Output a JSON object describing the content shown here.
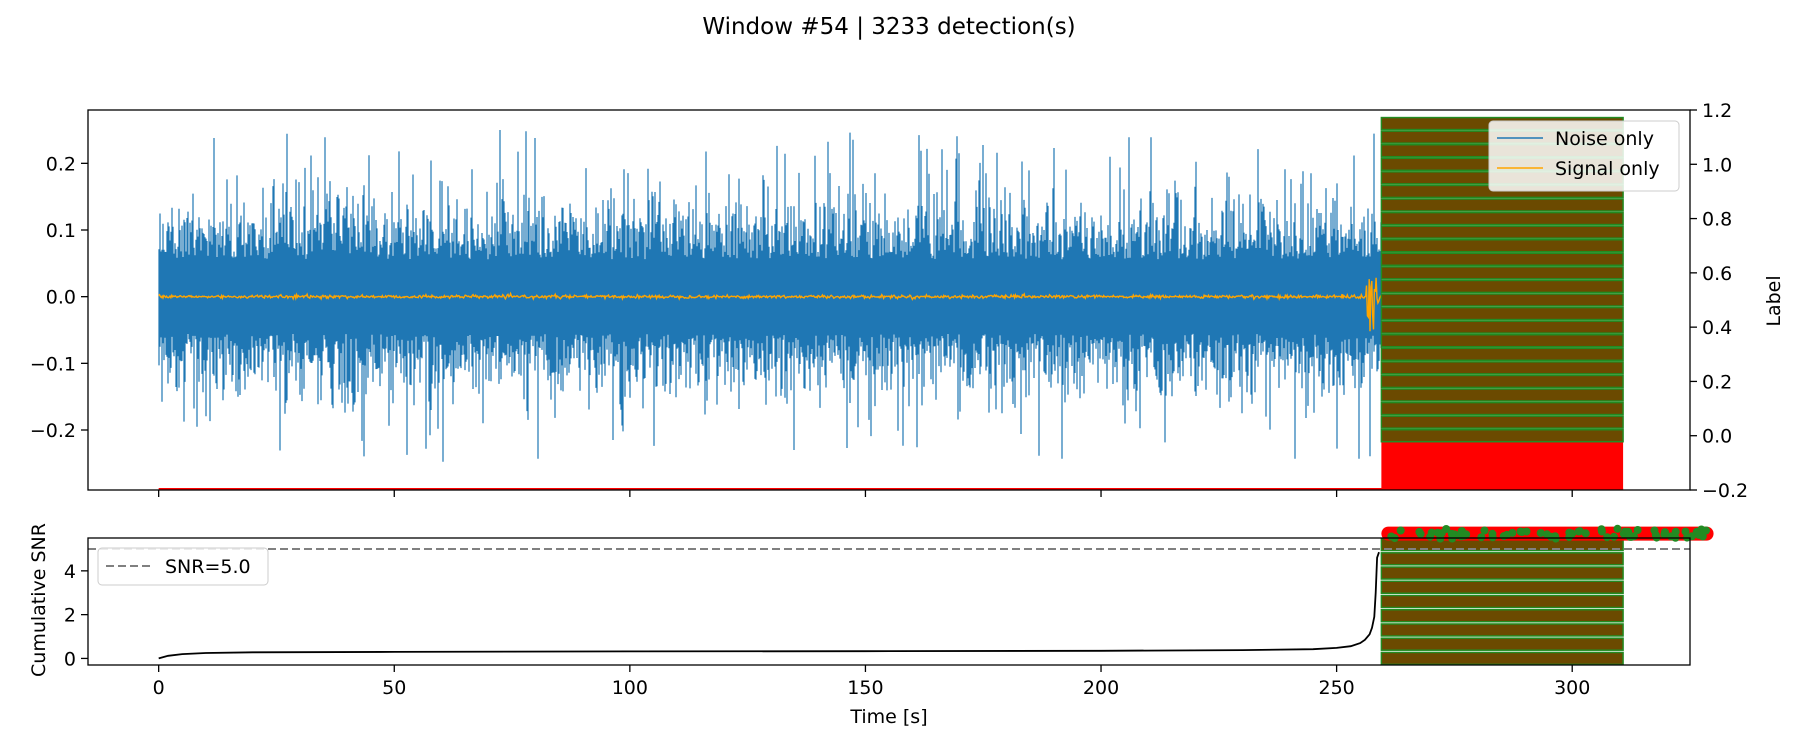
{
  "figure": {
    "suptitle": "Window #54 | 3233 detection(s)"
  },
  "chart_data": [
    {
      "type": "line",
      "panel": "waveform",
      "xlim": [
        -15,
        325
      ],
      "ylim": [
        -0.29,
        0.28
      ],
      "y_ticks": [
        -0.2,
        -0.1,
        0.0,
        0.1,
        0.2
      ],
      "y_tick_labels": [
        "−0.2",
        "−0.1",
        "0.0",
        "0.1",
        "0.2"
      ],
      "secondary_axis": {
        "label": "Label",
        "ylim": [
          -0.2,
          1.2
        ],
        "ticks": [
          -0.2,
          0.0,
          0.2,
          0.4,
          0.6,
          0.8,
          1.0,
          1.2
        ],
        "tick_labels": [
          "−0.2",
          "0.0",
          "0.2",
          "0.4",
          "0.6",
          "0.8",
          "1.0",
          "1.2"
        ]
      },
      "series": [
        {
          "name": "Noise only",
          "color": "#1f77b4",
          "x_range": [
            0,
            259.5
          ],
          "typical_amplitude": 0.09,
          "peak_amplitude": 0.25
        },
        {
          "name": "Signal only",
          "color": "#ffa500",
          "x_range": [
            0,
            259.5
          ],
          "baseline": 0.0,
          "event_time": 257.5,
          "event_peak_amplitude": 0.08
        }
      ],
      "detections": {
        "count": 3233,
        "x_range": [
          259.5,
          310.8
        ],
        "label_levels": [
          0.0,
          0.05,
          0.1,
          0.15,
          0.2,
          0.25,
          0.3,
          0.35,
          0.4,
          0.45,
          0.5,
          0.55,
          0.6,
          0.65,
          0.7,
          0.75,
          0.8,
          0.85,
          0.9,
          0.95,
          1.0,
          1.05,
          1.1,
          1.15
        ],
        "band_color": "#6b4a00",
        "edge_color": "#228b22",
        "red_block_label_range": [
          -0.2,
          0.0
        ],
        "red_color": "#ff0000"
      },
      "legend": {
        "placement": "top-right",
        "entries": [
          "Noise only",
          "Signal only"
        ]
      }
    },
    {
      "type": "line",
      "panel": "cumulative-snr",
      "xlabel": "Time [s]",
      "ylabel": "Cumulative SNR",
      "xlim": [
        -15,
        325
      ],
      "ylim": [
        -0.3,
        5.5
      ],
      "x_ticks": [
        0,
        50,
        100,
        150,
        200,
        250,
        300
      ],
      "y_ticks": [
        0,
        2,
        4
      ],
      "threshold": {
        "label": "SNR=5.0",
        "value": 5.0,
        "color": "#808080",
        "style": "dashed"
      },
      "series": [
        {
          "name": "Cumulative SNR",
          "color": "#000000",
          "x": [
            0,
            2,
            5,
            10,
            20,
            50,
            100,
            150,
            200,
            230,
            245,
            250,
            253,
            255,
            256,
            257,
            257.5,
            258,
            258.3,
            258.6,
            259
          ],
          "y": [
            0.0,
            0.12,
            0.2,
            0.25,
            0.28,
            0.3,
            0.32,
            0.33,
            0.35,
            0.38,
            0.42,
            0.48,
            0.56,
            0.7,
            0.85,
            1.1,
            1.4,
            1.9,
            3.0,
            4.6,
            4.85
          ]
        }
      ],
      "detections": {
        "x_range": [
          259.5,
          310.8
        ],
        "band_levels": [
          0.0,
          0.65,
          1.3,
          1.95,
          2.6,
          3.25,
          3.9,
          4.55,
          5.2
        ],
        "band_color": "#6b4a00",
        "edge_color": "#228b22",
        "overflow_marker_y": 5.7,
        "overflow_marker_x_range": [
          259.5,
          330
        ],
        "overflow_colors": [
          "#ff0000",
          "#228b22"
        ]
      },
      "legend": {
        "placement": "top-left",
        "entries": [
          "SNR=5.0"
        ]
      }
    }
  ]
}
